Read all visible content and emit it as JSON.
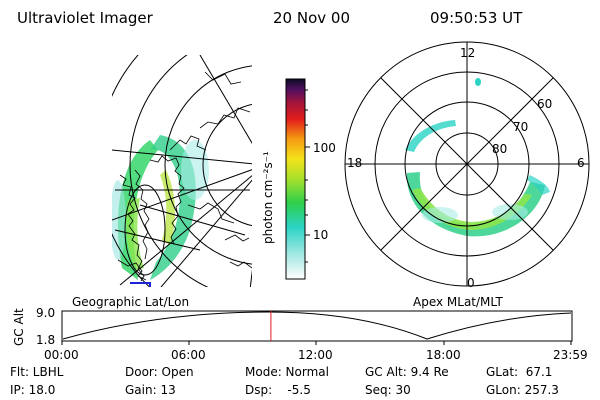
{
  "header": {
    "title": "Ultraviolet Imager",
    "date": "20 Nov 00",
    "time": "09:50:53 UT"
  },
  "colorbar": {
    "label": "photon cm⁻²s⁻¹",
    "ticks": [
      "100",
      "10"
    ]
  },
  "left_panel": {
    "caption": "Geographic Lat/Lon"
  },
  "right_panel": {
    "caption": "Apex MLat/MLT",
    "mlt_labels": [
      "12",
      "18",
      "6",
      "0"
    ],
    "lat_labels": [
      "60",
      "70",
      "80"
    ]
  },
  "altitude_plot": {
    "ylabel": "GC Alt",
    "ymax": "9.0",
    "ymin": "1.8",
    "xticks": [
      "00:00",
      "06:00",
      "12:00",
      "18:00",
      "23:59"
    ],
    "current_time_hours": 9.85
  },
  "info": {
    "flt": "Flt: LBHL",
    "ip": "IP: 18.0",
    "door": "Door: Open",
    "gain": "Gain: 13",
    "mode": "Mode: Normal",
    "dsp": "Dsp:    -5.5",
    "gcalt": "GC Alt: 9.4 Re",
    "seq": "Seq: 30",
    "glat": "GLat:  67.1",
    "glon": "GLon: 257.3"
  }
}
